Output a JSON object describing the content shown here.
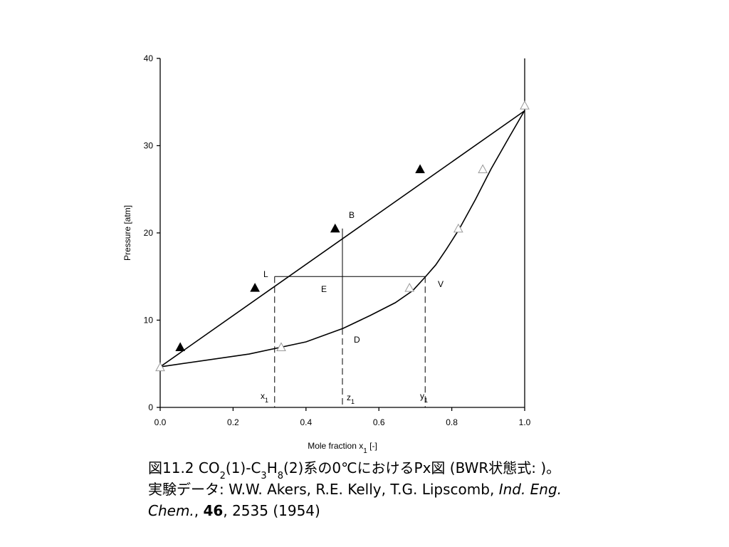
{
  "chart_data": {
    "type": "px-diagram",
    "xlabel": [
      {
        "text": "Mole fraction x"
      },
      {
        "text": "1",
        "style": "sub"
      },
      {
        "text": " [-]"
      }
    ],
    "ylabel": "Pressure [atm]",
    "xlim": [
      0,
      1
    ],
    "ylim": [
      0,
      40
    ],
    "xticks": [
      {
        "value": 0,
        "label": "0.0"
      },
      {
        "value": 0.2,
        "label": "0.2"
      },
      {
        "value": 0.4,
        "label": "0.4"
      },
      {
        "value": 0.6,
        "label": "0.6"
      },
      {
        "value": 0.8,
        "label": "0.8"
      },
      {
        "value": 1,
        "label": "1.0"
      }
    ],
    "yticks": [
      0,
      10,
      20,
      30,
      40
    ],
    "bubble_line": {
      "color": "#000000",
      "x": [
        0,
        1
      ],
      "values": [
        4.65,
        34.0
      ]
    },
    "dew_curve": {
      "color": "#000000",
      "x": [
        0,
        0.244,
        0.4,
        0.502,
        0.576,
        0.645,
        0.693,
        0.727,
        0.756,
        0.785,
        0.82,
        0.865,
        0.908,
        0.957,
        1
      ],
      "values": [
        4.65,
        6.12,
        7.51,
        9.06,
        10.53,
        12.0,
        13.39,
        14.94,
        16.33,
        18.12,
        20.41,
        23.84,
        27.35,
        30.94,
        34.04
      ]
    },
    "liquid_data": {
      "color": "#000000",
      "x": [
        0.055,
        0.26,
        0.48,
        0.713
      ],
      "values": [
        6.9,
        13.7,
        20.5,
        27.3
      ]
    },
    "vapor_data": {
      "color": "#999999",
      "x": [
        0,
        0.332,
        0.684,
        0.818,
        0.885,
        1
      ],
      "values": [
        4.6,
        6.9,
        13.7,
        20.5,
        27.3,
        34.6
      ]
    },
    "tie_line": {
      "pressure": 15,
      "x1": 0.314,
      "y1": 0.727
    },
    "feed": {
      "z1": 0.5,
      "B": 20.5,
      "D": 9.06
    },
    "labels": {
      "L": "L",
      "E": "E",
      "B": "B",
      "V": "V",
      "D": "D",
      "x1": [
        {
          "text": "x"
        },
        {
          "text": "1",
          "style": "sub"
        }
      ],
      "z1": [
        {
          "text": "z"
        },
        {
          "text": "1",
          "style": "sub"
        }
      ],
      "y1": [
        {
          "text": "y"
        },
        {
          "text": "1",
          "style": "sub"
        }
      ]
    }
  },
  "caption": [
    [
      {
        "text": "図11.2   CO"
      },
      {
        "text": "2",
        "style": "sub"
      },
      {
        "text": "(1)-C"
      },
      {
        "text": "3",
        "style": "sub"
      },
      {
        "text": "H"
      },
      {
        "text": "8",
        "style": "sub"
      },
      {
        "text": "(2)系の0℃におけるPx図 (BWR状態式: )。"
      }
    ],
    [
      {
        "text": "実験データ:  W.W. Akers, R.E. Kelly, T.G. Lipscomb, "
      },
      {
        "text": "Ind. Eng.",
        "style": "italic"
      }
    ],
    [
      {
        "text": "Chem.",
        "style": "italic"
      },
      {
        "text": ", "
      },
      {
        "text": "46",
        "style": "bold"
      },
      {
        "text": ", 2535 (1954)"
      }
    ]
  ]
}
